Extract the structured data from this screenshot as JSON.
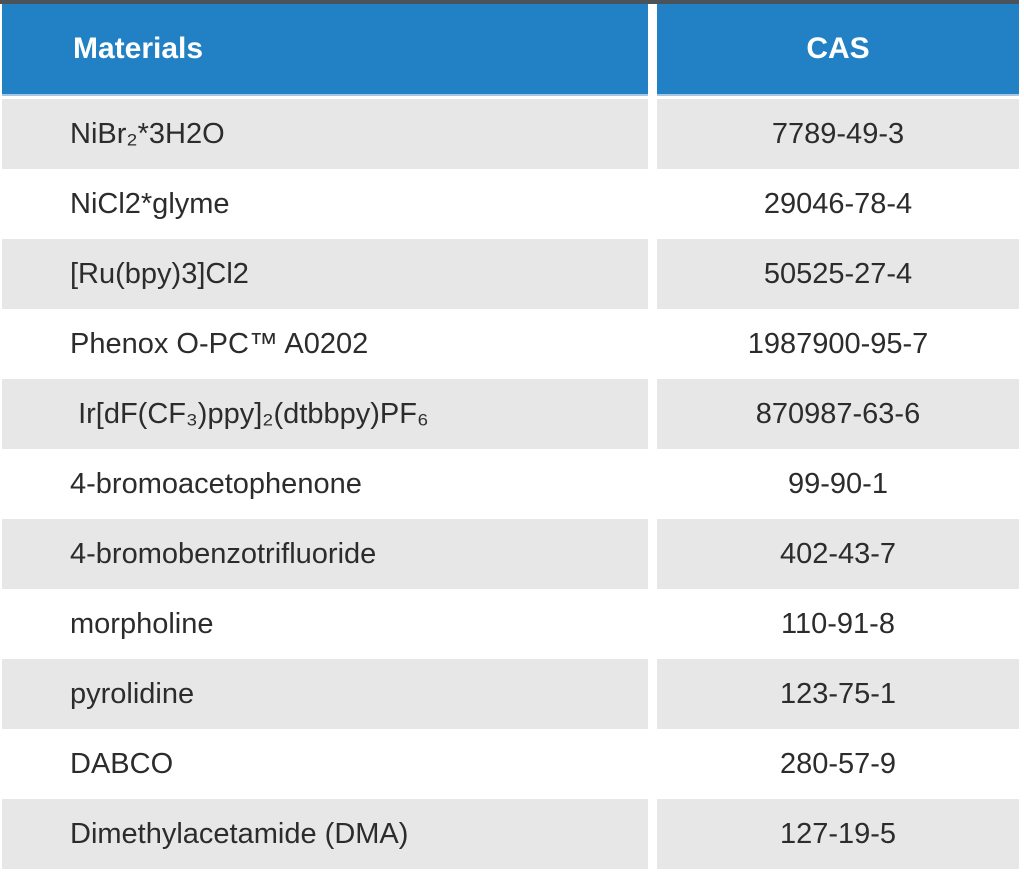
{
  "colors": {
    "header_bg": "#2181c4",
    "header_text": "#ffffff",
    "row_alt_bg": "#e7e7e7",
    "row_text": "#2c2c2c",
    "top_border": "#4a535a",
    "header_divider": "#a8c6e2"
  },
  "table": {
    "columns": [
      {
        "label": "Materials"
      },
      {
        "label": "CAS"
      }
    ],
    "rows": [
      {
        "material": "NiBr₂*3H2O",
        "cas": "7789-49-3"
      },
      {
        "material": "NiCl2*glyme",
        "cas": "29046-78-4"
      },
      {
        "material": "[Ru(bpy)3]Cl2",
        "cas": "50525-27-4"
      },
      {
        "material": "Phenox O-PC™ A0202",
        "cas": "1987900-95-7"
      },
      {
        "material": " Ir[dF(CF₃)ppy]₂(dtbbpy)PF₆",
        "cas": "870987-63-6"
      },
      {
        "material": "4-bromoacetophenone",
        "cas": "99-90-1"
      },
      {
        "material": "4-bromobenzotrifluoride",
        "cas": "402-43-7"
      },
      {
        "material": "morpholine",
        "cas": "110-91-8"
      },
      {
        "material": "pyrolidine",
        "cas": "123-75-1"
      },
      {
        "material": "DABCO",
        "cas": "280-57-9"
      },
      {
        "material": "Dimethylacetamide (DMA)",
        "cas": "127-19-5"
      }
    ]
  }
}
